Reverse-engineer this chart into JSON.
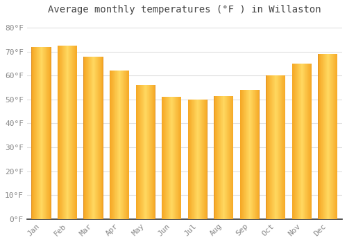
{
  "title": "Average monthly temperatures (°F ) in Willaston",
  "months": [
    "Jan",
    "Feb",
    "Mar",
    "Apr",
    "May",
    "Jun",
    "Jul",
    "Aug",
    "Sep",
    "Oct",
    "Nov",
    "Dec"
  ],
  "values": [
    72,
    72.5,
    68,
    62,
    56,
    51,
    50,
    51.5,
    54,
    60,
    65,
    69
  ],
  "bar_color_left": "#F5A623",
  "bar_color_center": "#FFD060",
  "bar_color_right": "#F5A623",
  "ylim": [
    0,
    84
  ],
  "yticks": [
    0,
    10,
    20,
    30,
    40,
    50,
    60,
    70,
    80
  ],
  "ytick_labels": [
    "0°F",
    "10°F",
    "20°F",
    "30°F",
    "40°F",
    "50°F",
    "60°F",
    "70°F",
    "80°F"
  ],
  "background_color": "#FFFFFF",
  "grid_color": "#E0E0E0",
  "title_fontsize": 10,
  "tick_fontsize": 8,
  "tick_color": "#888888",
  "bar_width": 0.75
}
